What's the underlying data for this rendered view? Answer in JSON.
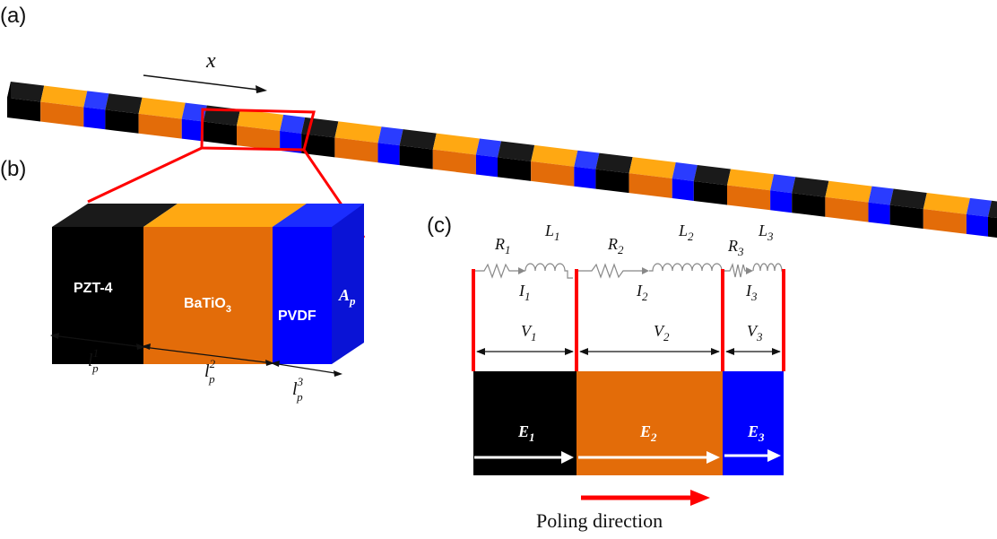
{
  "panels": {
    "a": "(a)",
    "b": "(b)",
    "c": "(c)"
  },
  "beam": {
    "x_label": "x"
  },
  "unit_cell": {
    "materials": [
      {
        "name": "PZT-4",
        "color": "#000000"
      },
      {
        "name": "BaTiO",
        "sub": "3",
        "color": "#E36C09"
      },
      {
        "name": "PVDF",
        "color": "#0000FF"
      }
    ],
    "area_label": {
      "base": "A",
      "sub": "p"
    },
    "lengths": [
      {
        "base": "l",
        "sup": "1",
        "sub": "p"
      },
      {
        "base": "l",
        "sup": "2",
        "sub": "p"
      },
      {
        "base": "l",
        "sup": "3",
        "sub": "p"
      }
    ]
  },
  "circuit": {
    "resistors": [
      {
        "base": "R",
        "sub": "1"
      },
      {
        "base": "R",
        "sub": "2"
      },
      {
        "base": "R",
        "sub": "3"
      }
    ],
    "inductors": [
      {
        "base": "L",
        "sub": "1"
      },
      {
        "base": "L",
        "sub": "2"
      },
      {
        "base": "L",
        "sub": "3"
      }
    ],
    "currents": [
      {
        "base": "I",
        "sub": "1"
      },
      {
        "base": "I",
        "sub": "2"
      },
      {
        "base": "I",
        "sub": "3"
      }
    ],
    "voltages": [
      {
        "base": "V",
        "sub": "1"
      },
      {
        "base": "V",
        "sub": "2"
      },
      {
        "base": "V",
        "sub": "3"
      }
    ],
    "fields": [
      {
        "base": "E",
        "sub": "1"
      },
      {
        "base": "E",
        "sub": "2"
      },
      {
        "base": "E",
        "sub": "3"
      }
    ],
    "poling_label": "Poling direction"
  },
  "colors": {
    "pzt_front": "#000000",
    "pzt_top": "#1a1a1a",
    "bto_front": "#E36C09",
    "bto_top": "#FFA812",
    "pvdf_front": "#0000FF",
    "pvdf_top": "#2a3cff",
    "side": "#1a1a1a",
    "highlight": "#FF0000",
    "wire": "#888888"
  }
}
